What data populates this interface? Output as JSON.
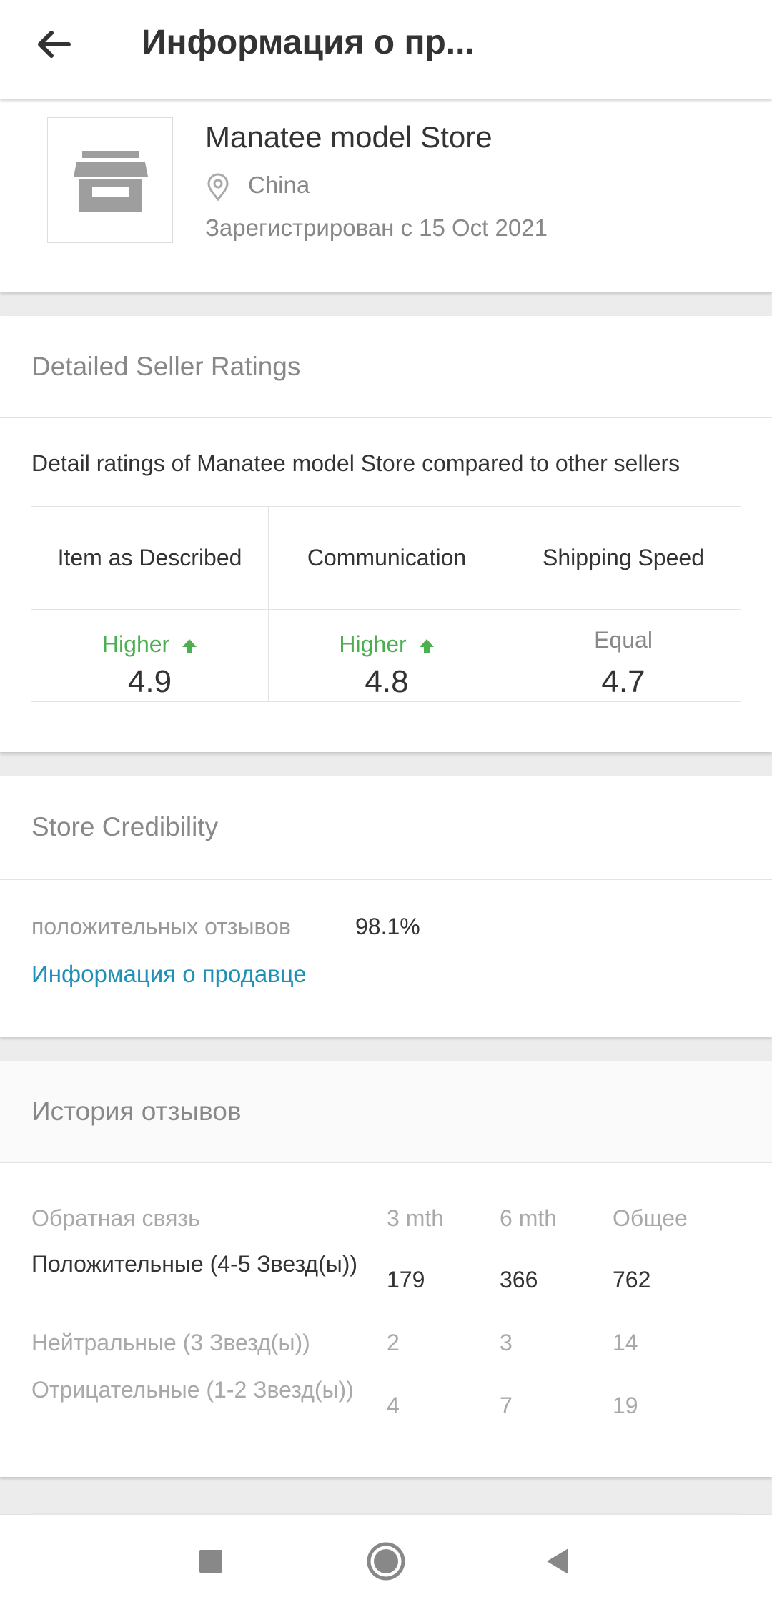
{
  "header": {
    "title": "Информация о пр..."
  },
  "store": {
    "name": "Manatee model Store",
    "country": "China",
    "registered": "Зарегистрирован с  15 Oct 2021"
  },
  "ratings": {
    "title": "Detailed Seller Ratings",
    "description": "Detail ratings of Manatee model Store compared to other sellers",
    "items": [
      {
        "label": "Item as Described",
        "comparison": "Higher",
        "score": "4.9"
      },
      {
        "label": "Communication",
        "comparison": "Higher",
        "score": "4.8"
      },
      {
        "label": "Shipping Speed",
        "comparison": "Equal",
        "score": "4.7"
      }
    ],
    "colors": {
      "higher": "#4caf50",
      "equal": "#888888"
    }
  },
  "credibility": {
    "title": "Store Credibility",
    "positive_label": "положительных отзывов",
    "positive_value": "98.1%",
    "seller_info_link": "Информация о продавце"
  },
  "history": {
    "title": "История отзывов",
    "columns": [
      "Обратная связь",
      "3 mth",
      "6 mth",
      "Общее"
    ],
    "rows": [
      {
        "label": "Положительные (4-5 Звезд(ы))",
        "m3": "179",
        "m6": "366",
        "total": "762"
      },
      {
        "label": "Нейтральные (3 Звезд(ы))",
        "m3": "2",
        "m6": "3",
        "total": "14"
      },
      {
        "label": "Отрицательные (1-2 Звезд(ы))",
        "m3": "4",
        "m6": "7",
        "total": "19"
      }
    ]
  },
  "navbar": {
    "icons": [
      "square-icon",
      "circle-home-icon",
      "triangle-back-icon"
    ]
  },
  "accent_color": "#1e90b4"
}
